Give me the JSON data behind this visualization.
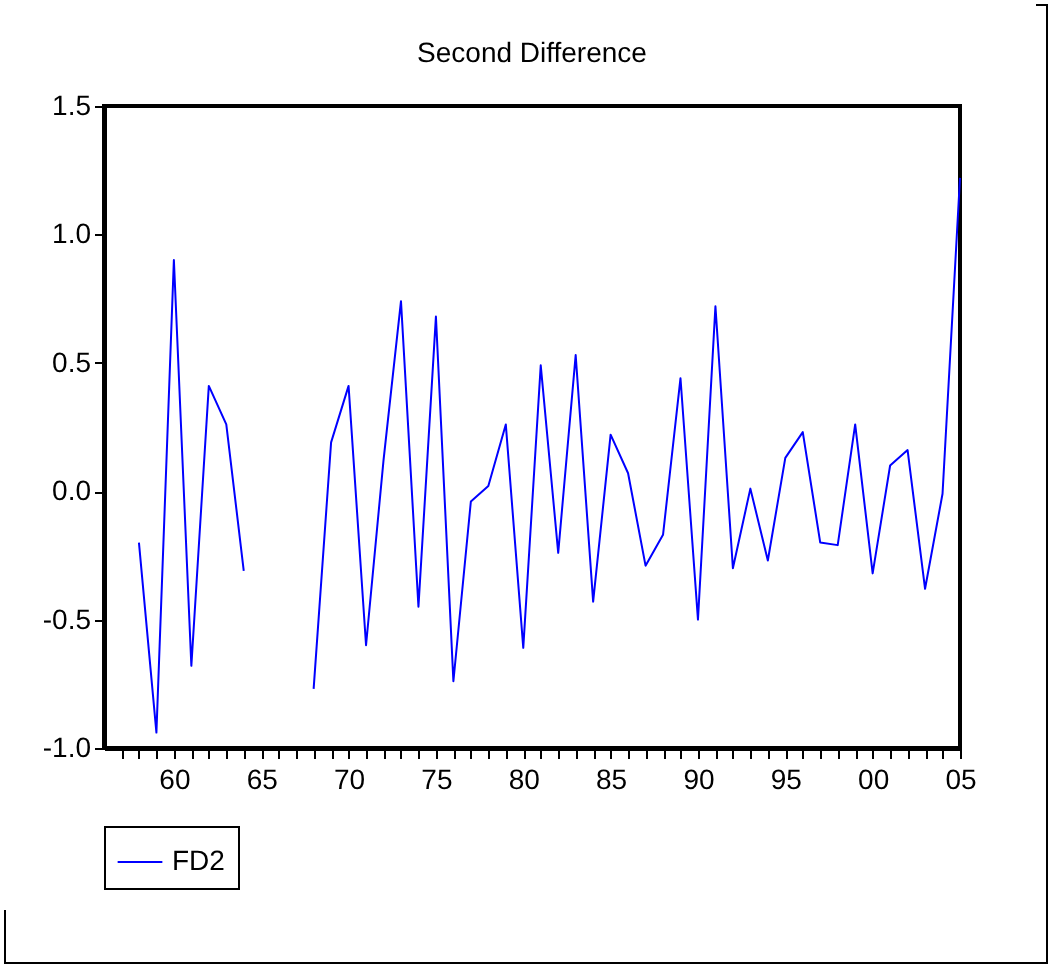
{
  "chart_data": {
    "type": "line",
    "title": "Second Difference",
    "x": [
      1958,
      1959,
      1960,
      1961,
      1962,
      1963,
      1964,
      1965,
      1966,
      1967,
      1968,
      1969,
      1970,
      1971,
      1972,
      1973,
      1974,
      1975,
      1976,
      1977,
      1978,
      1979,
      1980,
      1981,
      1982,
      1983,
      1984,
      1985,
      1986,
      1987,
      1988,
      1989,
      1990,
      1991,
      1992,
      1993,
      1994,
      1995,
      1996,
      1997,
      1998,
      1999,
      2000,
      2001,
      2002,
      2003,
      2004,
      2005
    ],
    "series": [
      {
        "name": "FD2",
        "color": "#0000ff",
        "values": [
          -0.2,
          -0.94,
          0.9,
          -0.68,
          0.41,
          0.26,
          -0.31,
          null,
          null,
          null,
          -0.77,
          0.19,
          0.41,
          -0.6,
          0.12,
          0.74,
          -0.45,
          0.68,
          -0.74,
          -0.04,
          0.02,
          0.26,
          -0.61,
          0.49,
          -0.24,
          0.53,
          -0.43,
          0.22,
          0.07,
          -0.29,
          -0.17,
          0.44,
          -0.5,
          0.72,
          -0.3,
          0.01,
          -0.27,
          0.13,
          0.23,
          -0.2,
          -0.21,
          0.26,
          -0.32,
          0.1,
          0.16,
          -0.38,
          -0.01,
          1.22
        ]
      }
    ],
    "xlim": [
      1956,
      2005
    ],
    "xticks": [
      {
        "value": 1957,
        "label": null
      },
      {
        "value": 1958,
        "label": null
      },
      {
        "value": 1959,
        "label": null
      },
      {
        "value": 1960,
        "label": "60"
      },
      {
        "value": 1961,
        "label": null
      },
      {
        "value": 1962,
        "label": null
      },
      {
        "value": 1963,
        "label": null
      },
      {
        "value": 1964,
        "label": null
      },
      {
        "value": 1965,
        "label": "65"
      },
      {
        "value": 1966,
        "label": null
      },
      {
        "value": 1967,
        "label": null
      },
      {
        "value": 1968,
        "label": null
      },
      {
        "value": 1969,
        "label": null
      },
      {
        "value": 1970,
        "label": "70"
      },
      {
        "value": 1971,
        "label": null
      },
      {
        "value": 1972,
        "label": null
      },
      {
        "value": 1973,
        "label": null
      },
      {
        "value": 1974,
        "label": null
      },
      {
        "value": 1975,
        "label": "75"
      },
      {
        "value": 1976,
        "label": null
      },
      {
        "value": 1977,
        "label": null
      },
      {
        "value": 1978,
        "label": null
      },
      {
        "value": 1979,
        "label": null
      },
      {
        "value": 1980,
        "label": "80"
      },
      {
        "value": 1981,
        "label": null
      },
      {
        "value": 1982,
        "label": null
      },
      {
        "value": 1983,
        "label": null
      },
      {
        "value": 1984,
        "label": null
      },
      {
        "value": 1985,
        "label": "85"
      },
      {
        "value": 1986,
        "label": null
      },
      {
        "value": 1987,
        "label": null
      },
      {
        "value": 1988,
        "label": null
      },
      {
        "value": 1989,
        "label": null
      },
      {
        "value": 1990,
        "label": "90"
      },
      {
        "value": 1991,
        "label": null
      },
      {
        "value": 1992,
        "label": null
      },
      {
        "value": 1993,
        "label": null
      },
      {
        "value": 1994,
        "label": null
      },
      {
        "value": 1995,
        "label": "95"
      },
      {
        "value": 1996,
        "label": null
      },
      {
        "value": 1997,
        "label": null
      },
      {
        "value": 1998,
        "label": null
      },
      {
        "value": 1999,
        "label": null
      },
      {
        "value": 2000,
        "label": "00"
      },
      {
        "value": 2001,
        "label": null
      },
      {
        "value": 2002,
        "label": null
      },
      {
        "value": 2003,
        "label": null
      },
      {
        "value": 2004,
        "label": null
      },
      {
        "value": 2005,
        "label": "05"
      }
    ],
    "ylim": [
      -1.0,
      1.5
    ],
    "yticks": [
      {
        "value": -1.0,
        "label": "-1.0"
      },
      {
        "value": -0.5,
        "label": "-0.5"
      },
      {
        "value": 0,
        "label": "0.0"
      },
      {
        "value": 0.5,
        "label": "0.5"
      },
      {
        "value": 1.0,
        "label": "1.0"
      },
      {
        "value": 1.5,
        "label": "1.5"
      }
    ],
    "legend": "bottom",
    "grid": false,
    "marker": "none",
    "line_style": "solid"
  }
}
